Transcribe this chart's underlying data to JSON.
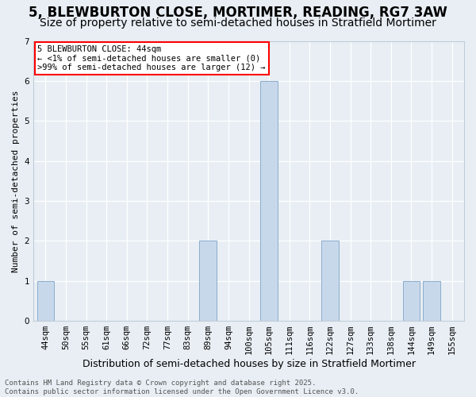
{
  "title": "5, BLEWBURTON CLOSE, MORTIMER, READING, RG7 3AW",
  "subtitle": "Size of property relative to semi-detached houses in Stratfield Mortimer",
  "xlabel_bottom": "Distribution of semi-detached houses by size in Stratfield Mortimer",
  "ylabel": "Number of semi-detached properties",
  "categories": [
    "44sqm",
    "50sqm",
    "55sqm",
    "61sqm",
    "66sqm",
    "72sqm",
    "77sqm",
    "83sqm",
    "89sqm",
    "94sqm",
    "100sqm",
    "105sqm",
    "111sqm",
    "116sqm",
    "122sqm",
    "127sqm",
    "133sqm",
    "138sqm",
    "144sqm",
    "149sqm",
    "155sqm"
  ],
  "values": [
    1,
    0,
    0,
    0,
    0,
    0,
    0,
    0,
    2,
    0,
    0,
    6,
    0,
    0,
    2,
    0,
    0,
    0,
    1,
    1,
    0
  ],
  "bar_color": "#c8d8eb",
  "bar_edge_color": "#8aadcc",
  "bg_color": "#e8eef4",
  "grid_color": "#ffffff",
  "spine_color": "#c0ccd8",
  "annotation_box_text": "5 BLEWBURTON CLOSE: 44sqm\n← <1% of semi-detached houses are smaller (0)\n>99% of semi-detached houses are larger (12) →",
  "annotation_box_color": "white",
  "annotation_box_edge_color": "red",
  "footer_text": "Contains HM Land Registry data © Crown copyright and database right 2025.\nContains public sector information licensed under the Open Government Licence v3.0.",
  "ylim": [
    0,
    7
  ],
  "yticks": [
    0,
    1,
    2,
    3,
    4,
    5,
    6,
    7
  ],
  "title_fontsize": 12,
  "subtitle_fontsize": 10,
  "ylabel_fontsize": 8,
  "tick_fontsize": 7.5,
  "footer_fontsize": 6.5,
  "annotation_fontsize": 7.5
}
